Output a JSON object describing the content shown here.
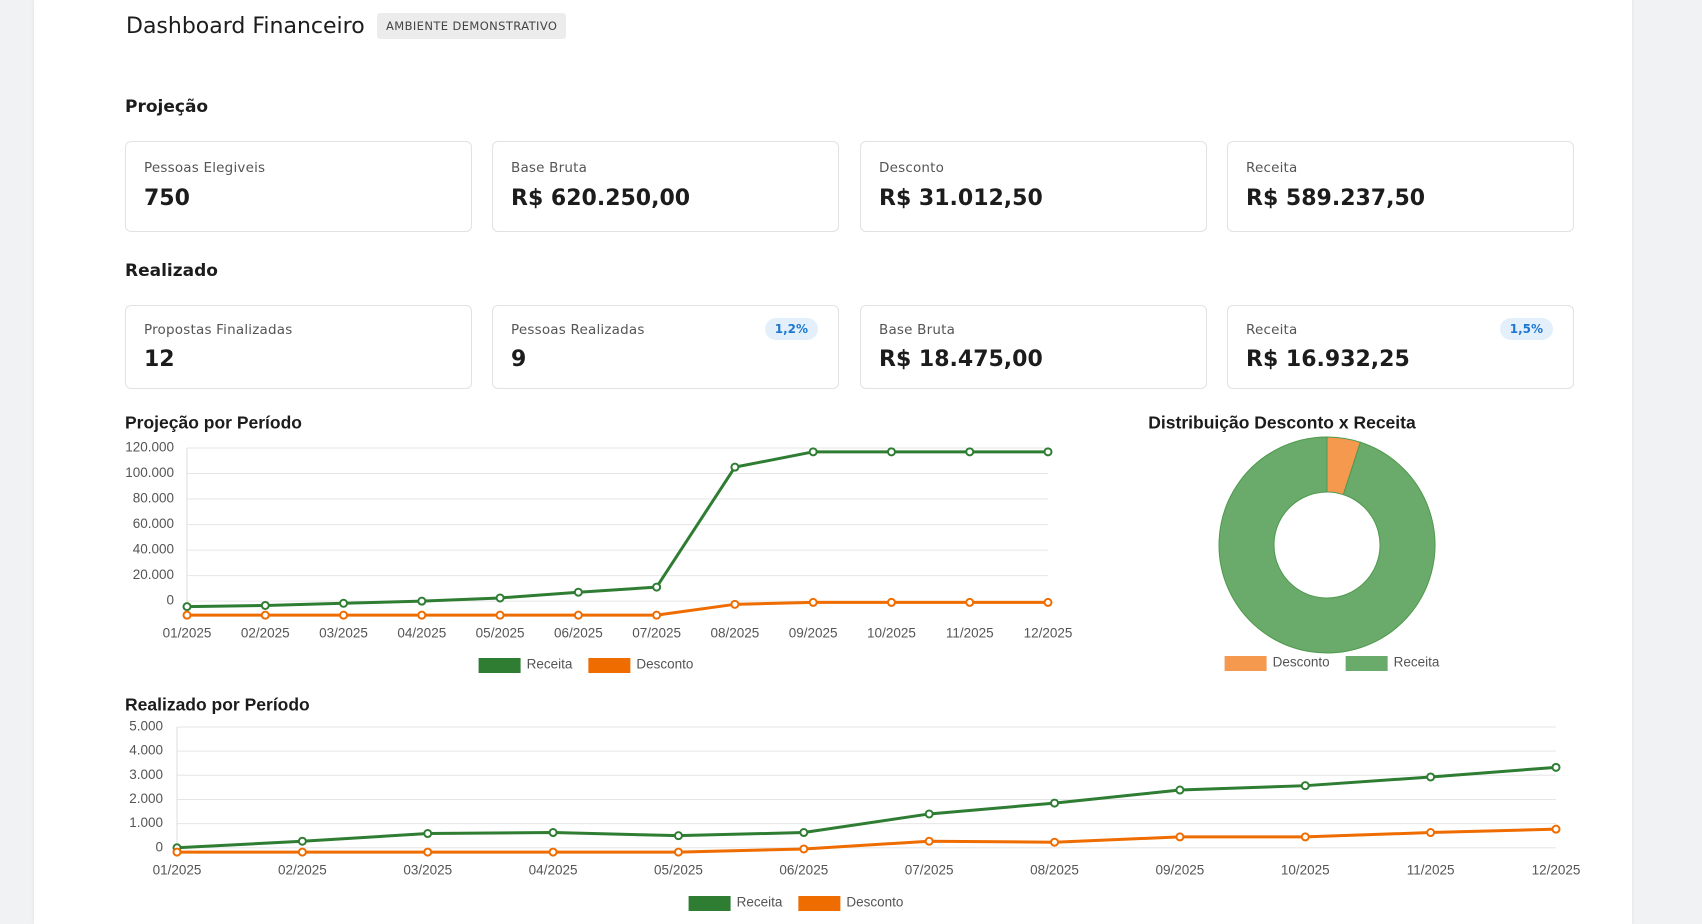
{
  "header": {
    "title": "Dashboard Financeiro",
    "badge": "AMBIENTE DEMONSTRATIVO"
  },
  "sections": [
    {
      "title": "Projeção",
      "cards": [
        {
          "label": "Pessoas Elegiveis",
          "value": 750
        },
        {
          "label": "Base Bruta",
          "value": "R$ 620.250,00"
        },
        {
          "label": "Desconto",
          "value": "R$ 31.012,50"
        },
        {
          "label": "Receita",
          "value": "R$ 589.237,50"
        }
      ]
    },
    {
      "title": "Realizado",
      "cards": [
        {
          "label": "Propostas Finalizadas",
          "value": 12
        },
        {
          "label": "Pessoas Realizadas",
          "value": 9,
          "badge": "1,2%"
        },
        {
          "label": "Base Bruta",
          "value": "R$ 18.475,00"
        },
        {
          "label": "Receita",
          "value": "R$ 16.932,25",
          "badge": "1,5%"
        }
      ]
    }
  ],
  "chart_data": [
    {
      "type": "line",
      "title": "Projeção por Período",
      "categories": [
        "01/2025",
        "02/2025",
        "03/2025",
        "04/2025",
        "05/2025",
        "06/2025",
        "07/2025",
        "08/2025",
        "09/2025",
        "10/2025",
        "11/2025",
        "12/2025"
      ],
      "series": [
        {
          "name": "Receita",
          "color": "#2e7d32",
          "values": [
            -4300,
            -3400,
            -1700,
            0,
            2500,
            7000,
            11000,
            105000,
            117000,
            117000,
            117000,
            117000
          ]
        },
        {
          "name": "Desconto",
          "color": "#ef6c00",
          "values": [
            -11000,
            -11000,
            -11000,
            -11000,
            -11000,
            -11000,
            -11000,
            -2500,
            -1000,
            -1000,
            -1000,
            -1000
          ]
        }
      ],
      "ylim": [
        -14000,
        120000
      ],
      "yticks": [
        0,
        {
          "value": 20000,
          "label": "20.000"
        },
        {
          "value": 40000,
          "label": "40.000"
        },
        {
          "value": 60000,
          "label": "60.000"
        },
        {
          "value": 80000,
          "label": "80.000"
        },
        {
          "value": 100000,
          "label": "100.000"
        },
        {
          "value": 120000,
          "label": "120.000"
        }
      ],
      "grid": true,
      "legend": "bottom"
    },
    {
      "type": "pie",
      "title": "Distribuição Desconto x Receita",
      "categories": [
        "Desconto",
        "Receita"
      ],
      "values": [
        31012.5,
        589237.5
      ],
      "colors": [
        "#f5994f",
        "#6aaa6a"
      ],
      "donut": true,
      "legend": "bottom"
    },
    {
      "type": "line",
      "title": "Realizado por Período",
      "categories": [
        "01/2025",
        "02/2025",
        "03/2025",
        "04/2025",
        "05/2025",
        "06/2025",
        "07/2025",
        "08/2025",
        "09/2025",
        "10/2025",
        "11/2025",
        "12/2025"
      ],
      "series": [
        {
          "name": "Receita",
          "color": "#2e7d32",
          "values": [
            0,
            270,
            590,
            630,
            500,
            630,
            1400,
            1850,
            2390,
            2570,
            2930,
            3330
          ]
        },
        {
          "name": "Desconto",
          "color": "#ef6c00",
          "values": [
            -180,
            -180,
            -180,
            -180,
            -180,
            -50,
            270,
            230,
            450,
            450,
            630,
            770
          ]
        }
      ],
      "ylim": [
        -300,
        5000
      ],
      "yticks": [
        0,
        {
          "value": 1000,
          "label": "1.000"
        },
        {
          "value": 2000,
          "label": "2.000"
        },
        {
          "value": 3000,
          "label": "3.000"
        },
        {
          "value": 4000,
          "label": "4.000"
        },
        {
          "value": 5000,
          "label": "5.000"
        }
      ],
      "grid": true,
      "legend": "bottom"
    }
  ]
}
